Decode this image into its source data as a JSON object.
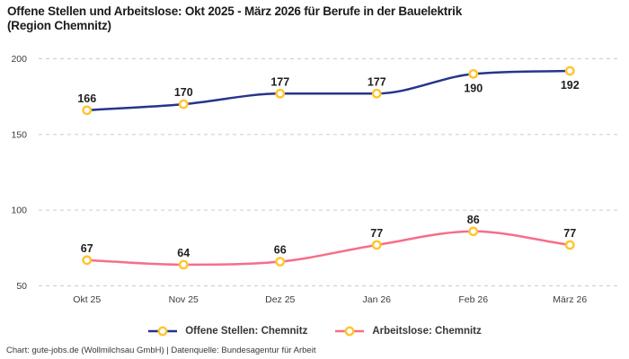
{
  "title": {
    "line1": "Offene Stellen und Arbeitslose: Okt 2025 - März 2026 für Berufe in der Bauelektrik",
    "line2": "(Region Chemnitz)"
  },
  "chart_data": {
    "type": "line",
    "categories": [
      "Okt 25",
      "Nov 25",
      "Dez 25",
      "Jan 26",
      "Feb 26",
      "März 26"
    ],
    "series": [
      {
        "name": "Offene Stellen: Chemnitz",
        "values": [
          166,
          170,
          177,
          177,
          190,
          192
        ],
        "color": "#27348b",
        "label_side": [
          "above",
          "above",
          "above",
          "above",
          "below",
          "below"
        ]
      },
      {
        "name": "Arbeitslose: Chemnitz",
        "values": [
          67,
          64,
          66,
          77,
          86,
          77
        ],
        "color": "#f76e87",
        "label_side": [
          "above",
          "above",
          "above",
          "above",
          "above",
          "above"
        ]
      }
    ],
    "marker_style": {
      "fill": "#ffffff",
      "stroke": "#fdc52f"
    },
    "yticks": [
      50,
      100,
      150,
      200
    ],
    "ylim": [
      50,
      200
    ],
    "grid": "horizontal-dashed",
    "grid_color": "#cbcbcb",
    "tick_color": "#3c3c3c",
    "data_label_color": "#1e1e1e",
    "legend_position": "bottom",
    "title": "Offene Stellen und Arbeitslose: Okt 2025 - März 2026 für Berufe in der Bauelektrik (Region Chemnitz)"
  },
  "legend": {
    "items": [
      {
        "label": "Offene Stellen: Chemnitz",
        "color": "#27348b"
      },
      {
        "label": "Arbeitslose: Chemnitz",
        "color": "#f76e87"
      }
    ]
  },
  "footer": {
    "text": "Chart: gute-jobs.de (Wollmilchsau GmbH) | Datenquelle: Bundesagentur für Arbeit"
  }
}
